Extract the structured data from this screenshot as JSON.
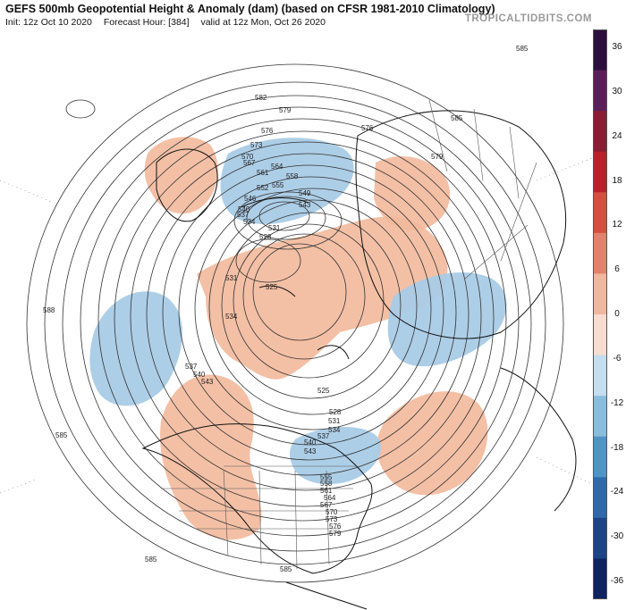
{
  "header": {
    "title": "GEFS 500mb Geopotential Height & Anomaly (dam) (based on CFSR 1981-2010 Climatology)",
    "init": "Init: 12z Oct 10 2020",
    "forecast_hour": "Forecast Hour: [384]",
    "valid": "valid at 12z Mon, Oct 26 2020",
    "brand": "TROPICALTIDBITS.COM"
  },
  "colorbar": {
    "ticks": [
      "36",
      "30",
      "24",
      "18",
      "12",
      "6",
      "0",
      "-6",
      "-12",
      "-18",
      "-24",
      "-30",
      "-36"
    ],
    "colors": [
      "#2d0f3d",
      "#5c1e5a",
      "#8a1c33",
      "#b8202a",
      "#d5503c",
      "#e2826a",
      "#f0b79e",
      "#f7dccf",
      "#c4ddef",
      "#89bddd",
      "#4f94c5",
      "#2e6aa8",
      "#1d4485",
      "#0f2362"
    ]
  },
  "map": {
    "height_labels": [
      "582",
      "579",
      "576",
      "573",
      "570",
      "567",
      "564",
      "561",
      "558",
      "555",
      "552",
      "549",
      "546",
      "543",
      "540",
      "537",
      "534",
      "531",
      "528",
      "525",
      "585",
      "588"
    ]
  }
}
